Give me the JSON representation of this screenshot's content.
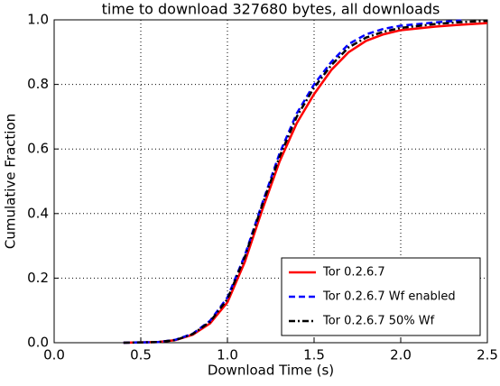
{
  "chart_data": {
    "type": "line",
    "title": "time to download 327680 bytes, all downloads",
    "x_label": "Download Time (s)",
    "y_label": "Cumulative Fraction",
    "x": [
      0.4,
      0.6,
      0.7,
      0.8,
      0.9,
      1.0,
      1.1,
      1.2,
      1.3,
      1.4,
      1.5,
      1.6,
      1.7,
      1.8,
      1.9,
      2.0,
      2.2,
      2.35,
      2.5
    ],
    "series": [
      {
        "name": "Tor 0.2.6.7",
        "color": "#ff0000",
        "linestyle": "solid",
        "values": [
          0,
          0.002,
          0.008,
          0.025,
          0.06,
          0.125,
          0.25,
          0.41,
          0.56,
          0.68,
          0.77,
          0.845,
          0.9,
          0.935,
          0.955,
          0.968,
          0.979,
          0.985,
          0.99
        ]
      },
      {
        "name": "Tor 0.2.6.7 Wf enabled",
        "color": "#0000ff",
        "linestyle": "dashed",
        "values": [
          0,
          0.002,
          0.009,
          0.028,
          0.068,
          0.14,
          0.27,
          0.43,
          0.585,
          0.71,
          0.8,
          0.87,
          0.925,
          0.955,
          0.972,
          0.982,
          0.992,
          0.998,
          null
        ]
      },
      {
        "name": "Tor 0.2.6.7 50% Wf",
        "color": "#000000",
        "linestyle": "dashdot",
        "values": [
          0,
          0.002,
          0.008,
          0.027,
          0.065,
          0.135,
          0.265,
          0.425,
          0.575,
          0.7,
          0.79,
          0.86,
          0.915,
          0.945,
          0.963,
          0.975,
          0.987,
          0.993,
          0.997
        ]
      }
    ],
    "xlim": [
      0,
      2.5
    ],
    "xticks": [
      {
        "value": 0,
        "label": "0.0"
      },
      0.5,
      {
        "value": 1,
        "label": "1.0"
      },
      1.5,
      {
        "value": 2,
        "label": "2.0"
      },
      2.5
    ],
    "ylim": [
      0,
      1
    ],
    "yticks": [
      {
        "value": 0,
        "label": "0.0"
      },
      0.2,
      0.4,
      0.6,
      0.8,
      {
        "value": 1,
        "label": "1.0"
      }
    ],
    "grid": true,
    "legend": "lower right"
  }
}
